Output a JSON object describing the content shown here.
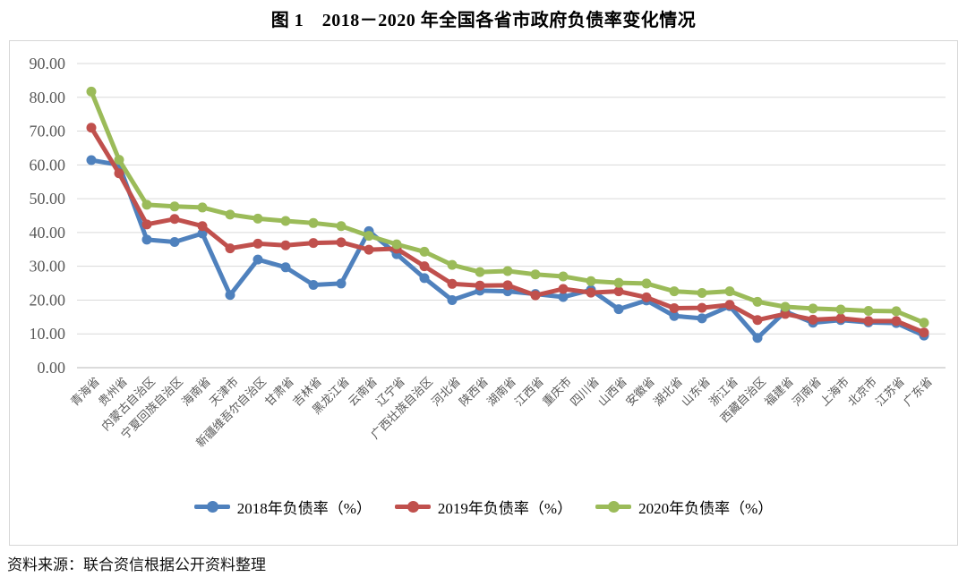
{
  "title": "图 1　2018－2020 年全国各省市政府负债率变化情况",
  "source_note": "资料来源：联合资信根据公开资料整理",
  "colors": {
    "series_2018": "#4F81BD",
    "series_2019": "#C0504D",
    "series_2020": "#9BBB59",
    "gridline": "#d9d9d9",
    "axis_line": "#b7b7b7",
    "tick_text": "#595959"
  },
  "chart_data": {
    "type": "line",
    "title": "图 1　2018－2020 年全国各省市政府负债率变化情况",
    "xlabel": "",
    "ylabel": "",
    "ylim": [
      0,
      90
    ],
    "ytick_step": 10,
    "ytick_labels": [
      "0.00",
      "10.00",
      "20.00",
      "30.00",
      "40.00",
      "50.00",
      "60.00",
      "70.00",
      "80.00",
      "90.00"
    ],
    "grid": "horizontal",
    "legend_position": "bottom",
    "marker": "circle",
    "categories": [
      "青海省",
      "贵州省",
      "内蒙古自治区",
      "宁夏回族自治区",
      "海南省",
      "天津市",
      "新疆维吾尔自治区",
      "甘肃省",
      "吉林省",
      "黑龙江省",
      "云南省",
      "辽宁省",
      "广西壮族自治区",
      "河北省",
      "陕西省",
      "湖南省",
      "江西省",
      "重庆市",
      "四川省",
      "山西省",
      "安徽省",
      "湖北省",
      "山东省",
      "浙江省",
      "西藏自治区",
      "福建省",
      "河南省",
      "上海市",
      "北京市",
      "江苏省",
      "广东省"
    ],
    "series": [
      {
        "name": "2018年负债率（%）",
        "color": "#4F81BD",
        "values": [
          61.4,
          60.0,
          37.9,
          37.2,
          39.7,
          21.5,
          32.0,
          29.7,
          24.5,
          24.9,
          40.4,
          33.6,
          26.5,
          20.0,
          22.8,
          22.6,
          21.8,
          20.9,
          23.0,
          17.3,
          19.9,
          15.3,
          14.6,
          18.2,
          8.8,
          16.6,
          13.3,
          14.1,
          13.4,
          13.2,
          9.5
        ]
      },
      {
        "name": "2019年负债率（%）",
        "color": "#C0504D",
        "values": [
          71.0,
          57.5,
          42.4,
          44.0,
          41.9,
          35.3,
          36.7,
          36.2,
          36.9,
          37.1,
          34.9,
          35.2,
          30.0,
          24.8,
          24.3,
          24.4,
          21.4,
          23.3,
          22.2,
          22.6,
          20.8,
          17.6,
          17.7,
          18.6,
          14.1,
          15.9,
          14.2,
          14.6,
          13.8,
          13.8,
          10.4
        ]
      },
      {
        "name": "2020年负债率（%）",
        "color": "#9BBB59",
        "values": [
          81.7,
          61.5,
          48.2,
          47.7,
          47.4,
          45.3,
          44.1,
          43.4,
          42.8,
          41.9,
          39.0,
          36.5,
          34.3,
          30.4,
          28.3,
          28.6,
          27.6,
          27.0,
          25.6,
          25.1,
          24.9,
          22.6,
          22.1,
          22.6,
          19.5,
          18.0,
          17.5,
          17.2,
          16.8,
          16.7,
          13.3
        ]
      }
    ]
  }
}
